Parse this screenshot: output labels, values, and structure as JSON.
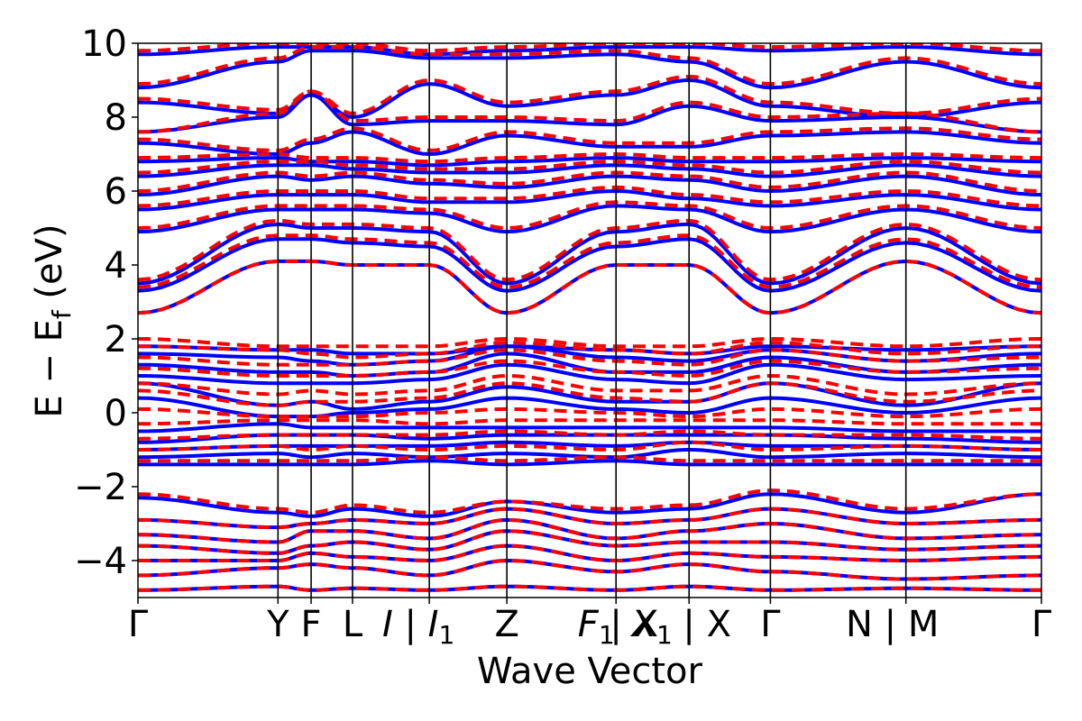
{
  "chart_data": {
    "type": "line",
    "xlabel": "Wave Vector",
    "ylabel": "E − E",
    "ylabel_sub": "f",
    "ylabel_unit": " (eV)",
    "ylim": [
      -5,
      10
    ],
    "yticks": [
      -4,
      -2,
      0,
      2,
      4,
      6,
      8,
      10
    ],
    "ytick_labels": [
      "−4",
      "−2",
      "0",
      "2",
      "4",
      "6",
      "8",
      "10"
    ],
    "xlim": [
      0,
      12
    ],
    "kpoints": [
      {
        "label": "Γ",
        "sub": "",
        "x": 0,
        "line": false
      },
      {
        "label": "Y",
        "sub": "",
        "x": 1.86,
        "line": true
      },
      {
        "label": "F",
        "sub": "",
        "x": 2.3,
        "line": true
      },
      {
        "label": "L",
        "sub": "",
        "x": 2.85,
        "line": true
      },
      {
        "label": "I | I",
        "sub": "1",
        "x": 3.87,
        "line": true
      },
      {
        "label": "Z",
        "sub": "",
        "x": 4.9,
        "line": true
      },
      {
        "label": "F",
        "sub": "1",
        "x": 6.35,
        "line": true
      },
      {
        "label": "| X",
        "sub": "",
        "x": 6.35,
        "line": false
      },
      {
        "label": "X",
        "sub": "1",
        "x": 6.35,
        "line": false
      },
      {
        "label": "| X",
        "sub": "",
        "x": 7.32,
        "line": true
      },
      {
        "label": "Γ",
        "sub": "",
        "x": 8.4,
        "line": true
      },
      {
        "label": "N | M",
        "sub": "",
        "x": 10.2,
        "line": true
      },
      {
        "label": "Γ",
        "sub": "",
        "x": 12,
        "line": false
      }
    ],
    "band_nodes": [
      0,
      1.86,
      2.3,
      2.85,
      3.87,
      4.9,
      6.35,
      7.32,
      8.4,
      10.2,
      12
    ],
    "series": [
      {
        "spin": "up",
        "color": "#0000ff",
        "bands": [
          [
            -4.8,
            -4.7,
            -4.8,
            -4.75,
            -4.8,
            -4.7,
            -4.8,
            -4.7,
            -4.8,
            -4.75,
            -4.8
          ],
          [
            -4.4,
            -4.2,
            -4.1,
            -4.2,
            -4.4,
            -4.0,
            -4.3,
            -4.1,
            -4.3,
            -4.5,
            -4.4
          ],
          [
            -4.0,
            -4.0,
            -3.8,
            -3.9,
            -4.0,
            -3.6,
            -4.0,
            -3.8,
            -3.9,
            -4.0,
            -3.9
          ],
          [
            -3.6,
            -3.8,
            -3.6,
            -3.5,
            -3.7,
            -3.2,
            -3.6,
            -3.5,
            -3.5,
            -3.7,
            -3.6
          ],
          [
            -3.3,
            -3.5,
            -3.2,
            -3.2,
            -3.4,
            -2.9,
            -3.4,
            -3.2,
            -3.0,
            -3.4,
            -3.3
          ],
          [
            -2.9,
            -3.1,
            -3.0,
            -2.9,
            -3.0,
            -2.6,
            -3.0,
            -2.9,
            -2.6,
            -3.0,
            -2.9
          ],
          [
            -2.3,
            -2.7,
            -2.8,
            -2.6,
            -2.8,
            -2.4,
            -2.7,
            -2.6,
            -2.2,
            -2.7,
            -2.2
          ],
          [
            -1.4,
            -1.4,
            -1.4,
            -1.4,
            -1.3,
            -1.4,
            -1.3,
            -1.4,
            -1.4,
            -1.4,
            -1.4
          ],
          [
            -1.2,
            -1.1,
            -1.2,
            -1.1,
            -1.2,
            -1.1,
            -1.2,
            -1.0,
            -1.2,
            -1.1,
            -1.2
          ],
          [
            -1.0,
            -0.9,
            -0.9,
            -0.9,
            -0.9,
            -0.8,
            -0.9,
            -0.8,
            -0.9,
            -0.9,
            -1.0
          ],
          [
            -0.8,
            -0.6,
            -0.6,
            -0.6,
            -0.7,
            -0.6,
            -0.6,
            -0.6,
            -0.6,
            -0.7,
            -0.8
          ],
          [
            -0.5,
            -0.3,
            -0.4,
            -0.4,
            -0.4,
            -0.4,
            -0.4,
            -0.4,
            -0.4,
            -0.5,
            -0.5
          ],
          [
            0.4,
            -0.1,
            -0.1,
            0.0,
            0.1,
            0.4,
            0.1,
            0.0,
            0.4,
            0.0,
            0.4
          ],
          [
            0.8,
            0.2,
            0.3,
            0.1,
            0.3,
            0.7,
            0.3,
            0.3,
            0.8,
            0.2,
            0.8
          ],
          [
            1.0,
            0.8,
            0.8,
            0.8,
            0.9,
            1.3,
            0.9,
            0.8,
            1.3,
            0.9,
            1.0
          ],
          [
            1.3,
            1.1,
            1.1,
            1.0,
            1.1,
            1.6,
            1.1,
            1.1,
            1.5,
            1.1,
            1.3
          ],
          [
            1.6,
            1.5,
            1.4,
            1.3,
            1.4,
            1.8,
            1.5,
            1.4,
            1.7,
            1.4,
            1.6
          ],
          [
            1.8,
            1.7,
            1.7,
            1.6,
            1.6,
            1.8,
            1.7,
            1.6,
            1.8,
            1.7,
            1.8
          ],
          [
            2.7,
            4.1,
            4.1,
            4.0,
            4.0,
            2.7,
            4.0,
            4.0,
            2.7,
            4.1,
            2.7
          ],
          [
            3.3,
            4.7,
            4.7,
            4.6,
            4.5,
            3.3,
            4.5,
            4.7,
            3.3,
            4.6,
            3.3
          ],
          [
            3.5,
            5.1,
            5.0,
            5.0,
            4.9,
            3.5,
            4.9,
            5.1,
            3.5,
            5.0,
            3.5
          ],
          [
            4.9,
            5.5,
            5.5,
            5.5,
            5.4,
            4.9,
            5.6,
            5.5,
            4.9,
            5.5,
            4.9
          ],
          [
            5.5,
            5.9,
            5.9,
            5.9,
            5.7,
            5.7,
            6.0,
            5.8,
            5.6,
            5.9,
            5.5
          ],
          [
            5.9,
            6.4,
            6.3,
            6.4,
            6.2,
            6.1,
            6.4,
            6.3,
            6.0,
            6.4,
            5.9
          ],
          [
            6.4,
            6.7,
            6.7,
            6.6,
            6.5,
            6.5,
            6.7,
            6.6,
            6.4,
            6.7,
            6.4
          ],
          [
            6.8,
            6.9,
            6.8,
            6.8,
            6.7,
            6.8,
            6.9,
            6.8,
            6.8,
            6.9,
            6.8
          ],
          [
            7.3,
            7.0,
            7.3,
            7.6,
            7.0,
            7.5,
            7.2,
            7.2,
            7.5,
            7.6,
            7.3
          ],
          [
            7.6,
            8.0,
            8.6,
            7.8,
            7.9,
            7.9,
            7.8,
            8.3,
            7.9,
            8.0,
            7.6
          ],
          [
            8.4,
            8.1,
            8.6,
            8.0,
            8.9,
            8.3,
            8.6,
            9.0,
            8.3,
            8.0,
            8.4
          ],
          [
            8.8,
            9.5,
            9.8,
            9.8,
            9.6,
            9.6,
            9.7,
            9.5,
            8.8,
            9.5,
            8.8
          ],
          [
            9.7,
            9.9,
            9.9,
            9.9,
            9.7,
            9.8,
            9.9,
            9.9,
            9.8,
            9.9,
            9.7
          ]
        ]
      },
      {
        "spin": "down",
        "color": "#ff0000",
        "bands": [
          [
            -4.8,
            -4.7,
            -4.8,
            -4.75,
            -4.8,
            -4.7,
            -4.8,
            -4.7,
            -4.8,
            -4.75,
            -4.8
          ],
          [
            -4.4,
            -4.2,
            -4.1,
            -4.2,
            -4.4,
            -4.0,
            -4.3,
            -4.1,
            -4.3,
            -4.5,
            -4.4
          ],
          [
            -4.0,
            -4.0,
            -3.8,
            -3.9,
            -4.0,
            -3.6,
            -4.0,
            -3.8,
            -3.9,
            -4.0,
            -3.9
          ],
          [
            -3.6,
            -3.8,
            -3.6,
            -3.5,
            -3.7,
            -3.2,
            -3.6,
            -3.5,
            -3.5,
            -3.7,
            -3.6
          ],
          [
            -3.3,
            -3.5,
            -3.2,
            -3.2,
            -3.4,
            -2.9,
            -3.4,
            -3.2,
            -3.0,
            -3.4,
            -3.3
          ],
          [
            -2.9,
            -3.1,
            -3.0,
            -2.9,
            -3.0,
            -2.6,
            -3.0,
            -2.9,
            -2.6,
            -3.0,
            -2.9
          ],
          [
            -2.2,
            -2.6,
            -2.7,
            -2.5,
            -2.7,
            -2.4,
            -2.6,
            -2.5,
            -2.1,
            -2.6,
            -2.2
          ],
          [
            -1.3,
            -1.3,
            -1.3,
            -1.3,
            -1.2,
            -1.3,
            -1.2,
            -1.3,
            -1.3,
            -1.3,
            -1.3
          ],
          [
            -1.0,
            -0.9,
            -1.0,
            -0.9,
            -1.0,
            -0.9,
            -1.0,
            -0.8,
            -1.0,
            -0.9,
            -1.0
          ],
          [
            -0.7,
            -0.6,
            -0.6,
            -0.6,
            -0.6,
            -0.5,
            -0.6,
            -0.5,
            -0.6,
            -0.6,
            -0.7
          ],
          [
            -0.3,
            -0.2,
            -0.2,
            -0.2,
            -0.3,
            -0.2,
            -0.2,
            -0.2,
            -0.2,
            -0.3,
            -0.3
          ],
          [
            0.1,
            -0.1,
            -0.1,
            -0.1,
            0.0,
            0.1,
            0.0,
            -0.1,
            0.1,
            -0.1,
            0.1
          ],
          [
            0.6,
            0.2,
            0.3,
            0.3,
            0.4,
            0.8,
            0.4,
            0.3,
            0.8,
            0.3,
            0.6
          ],
          [
            0.8,
            0.5,
            0.6,
            0.5,
            0.6,
            1.0,
            0.6,
            0.6,
            1.0,
            0.5,
            0.8
          ],
          [
            1.2,
            1.0,
            1.0,
            1.0,
            1.1,
            1.4,
            1.1,
            1.0,
            1.4,
            1.1,
            1.2
          ],
          [
            1.5,
            1.3,
            1.3,
            1.3,
            1.4,
            1.7,
            1.4,
            1.3,
            1.7,
            1.4,
            1.5
          ],
          [
            1.8,
            1.7,
            1.6,
            1.5,
            1.6,
            1.9,
            1.7,
            1.6,
            1.9,
            1.6,
            1.8
          ],
          [
            2.0,
            1.8,
            1.8,
            1.8,
            1.8,
            2.0,
            1.8,
            1.8,
            2.0,
            1.8,
            2.0
          ],
          [
            2.7,
            4.1,
            4.1,
            4.0,
            4.0,
            2.7,
            4.0,
            4.0,
            2.7,
            4.1,
            2.7
          ],
          [
            3.4,
            4.8,
            4.8,
            4.7,
            4.6,
            3.4,
            4.6,
            4.8,
            3.4,
            4.7,
            3.4
          ],
          [
            3.6,
            5.2,
            5.1,
            5.1,
            5.0,
            3.6,
            5.0,
            5.2,
            3.6,
            5.1,
            3.6
          ],
          [
            5.0,
            5.6,
            5.6,
            5.6,
            5.5,
            5.0,
            5.7,
            5.6,
            5.0,
            5.6,
            5.0
          ],
          [
            5.6,
            6.0,
            6.0,
            6.0,
            5.8,
            5.8,
            6.1,
            5.9,
            5.7,
            6.0,
            5.6
          ],
          [
            6.0,
            6.5,
            6.4,
            6.5,
            6.3,
            6.2,
            6.5,
            6.4,
            6.1,
            6.5,
            6.0
          ],
          [
            6.5,
            6.8,
            6.8,
            6.7,
            6.6,
            6.6,
            6.8,
            6.7,
            6.5,
            6.8,
            6.5
          ],
          [
            6.9,
            7.0,
            6.9,
            6.9,
            6.8,
            6.9,
            7.0,
            6.9,
            6.9,
            7.0,
            6.9
          ],
          [
            7.4,
            7.1,
            7.4,
            7.7,
            7.1,
            7.6,
            7.3,
            7.3,
            7.6,
            7.7,
            7.4
          ],
          [
            7.6,
            8.1,
            8.7,
            7.9,
            8.0,
            8.0,
            7.9,
            8.4,
            8.0,
            8.1,
            7.6
          ],
          [
            8.5,
            8.2,
            8.7,
            8.1,
            9.0,
            8.4,
            8.7,
            9.1,
            8.4,
            8.1,
            8.5
          ],
          [
            8.9,
            9.6,
            9.9,
            9.9,
            9.7,
            9.7,
            9.8,
            9.6,
            8.9,
            9.6,
            8.9
          ],
          [
            9.8,
            10.0,
            10.0,
            10.0,
            9.8,
            9.9,
            10.0,
            10.0,
            9.9,
            10.0,
            9.8
          ]
        ]
      }
    ]
  }
}
